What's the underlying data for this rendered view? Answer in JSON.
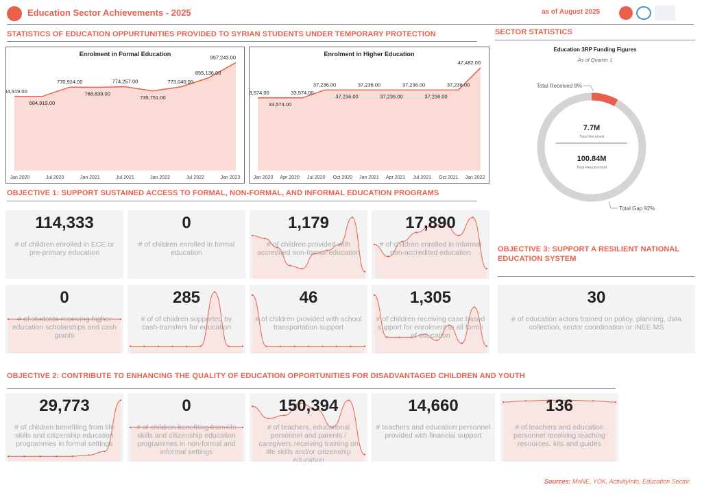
{
  "header": {
    "title": "Education Sector Achievements - 2025",
    "as_of": "as of August 2025"
  },
  "section_stats_title": "STATISTICS OF EDUCATION OPPURTUNITIES PROVIDED TO SYRIAN STUDENTS UNDER TEMPORARY PROTECTION",
  "sector_stats_title": "SECTOR STATISTICS",
  "colors": {
    "accent": "#e8604c",
    "area": "#fadbd6",
    "card_bg": "#f3f3f3",
    "donut_gray": "#d4d4d4"
  },
  "chart_data": [
    {
      "type": "area",
      "title": "Enrolment in Formal Education",
      "x_ticks": [
        "Jan 2020",
        "Jul 2020",
        "Jan 2021",
        "Jul 2021",
        "Jan 2022",
        "Jul 2022",
        "Jan 2023"
      ],
      "points": [
        {
          "label": "684,919.00",
          "value": 684919,
          "pos": "above"
        },
        {
          "label": "684,919.00",
          "value": 684919,
          "pos": "below"
        },
        {
          "label": "770,924.00",
          "value": 770924,
          "pos": "above"
        },
        {
          "label": "768,839.00",
          "value": 768839,
          "pos": "below"
        },
        {
          "label": "774,257.00",
          "value": 774257,
          "pos": "above"
        },
        {
          "label": "735,751.00",
          "value": 735751,
          "pos": "below"
        },
        {
          "label": "773,040.00",
          "value": 773040,
          "pos": "above"
        },
        {
          "label": "855,136.00",
          "value": 855136,
          "pos": "above"
        },
        {
          "label": "997,243.00",
          "value": 997243,
          "pos": "above"
        }
      ],
      "ylim": [
        0,
        1000000
      ]
    },
    {
      "type": "area",
      "title": "Enrolment in Higher Education",
      "x_ticks": [
        "Jan 2020",
        "Apr 2020",
        "Jul 2020",
        "Oct 2020",
        "Jan 2021",
        "Apr 2021",
        "Jul 2021",
        "Oct 2021",
        "Jan 2022"
      ],
      "points": [
        {
          "label": "33,574.00",
          "value": 33574,
          "pos": "above"
        },
        {
          "label": "33,574.00",
          "value": 33574,
          "pos": "below"
        },
        {
          "label": "33,574.00",
          "value": 33574,
          "pos": "above"
        },
        {
          "label": "37,236.00",
          "value": 37236,
          "pos": "above"
        },
        {
          "label": "37,236.00",
          "value": 37236,
          "pos": "below"
        },
        {
          "label": "37,236.00",
          "value": 37236,
          "pos": "above"
        },
        {
          "label": "37,236.00",
          "value": 37236,
          "pos": "below"
        },
        {
          "label": "37,236.00",
          "value": 37236,
          "pos": "above"
        },
        {
          "label": "37,236.00",
          "value": 37236,
          "pos": "below"
        },
        {
          "label": "37,236.00",
          "value": 37236,
          "pos": "above"
        },
        {
          "label": "47,482.00",
          "value": 47482,
          "pos": "above"
        }
      ],
      "ylim": [
        0,
        50000
      ]
    },
    {
      "type": "pie",
      "title": "Education 3RP Funding Figures",
      "subtitle": "As of Quarter 1",
      "slices": [
        {
          "name": "Total Received",
          "percent": 8,
          "label": "Total Received 8%"
        },
        {
          "name": "Total Gap",
          "percent": 92,
          "label": "Total Gap 92%"
        }
      ],
      "center": {
        "received_value": "7.7M",
        "received_label": "Total Received",
        "requirement_value": "100.84M",
        "requirement_label": "Total Requirement"
      }
    }
  ],
  "objectives": [
    {
      "title": "OBJECTIVE 1:   SUPPORT SUSTAINED ACCESS TO FORMAL, NON-FORMAL, AND INFORMAL EDUCATION PROGRAMS"
    },
    {
      "title": "OBJECTIVE 2: CONTRIBUTE TO ENHANCING THE QUALITY OF EDUCATION OPPORTUNITIES FOR DISADVANTAGED CHILDREN AND YOUTH"
    },
    {
      "title": "OBJECTIVE 3: SUPPORT A RESILIENT NATIONAL EDUCATION SYSTEM"
    }
  ],
  "cards": [
    {
      "value": "114,333",
      "desc": "# of children enrolled in ECE or pre-primary education",
      "trend": []
    },
    {
      "value": "0",
      "desc": "# of children enrolled in formal education",
      "trend": []
    },
    {
      "value": "1,179",
      "desc": "# of children provided with accredited non-formal education",
      "trend": [
        0.35,
        0.4,
        0.55,
        0.85,
        0.9,
        0.65,
        0.6,
        0.5,
        0.05,
        0.95
      ]
    },
    {
      "value": "17,890",
      "desc": "# of children enrolled in informal non-accredited education",
      "trend": [
        0.5,
        0.7,
        0.45,
        0.3,
        0.2,
        0.15,
        0.35,
        0.05,
        0.9
      ]
    },
    {
      "value": "0",
      "desc": "# of students receiving higher education scholarships and cash grants",
      "trend": [
        0.5,
        0.5,
        0.5,
        0.5,
        0.5,
        0.5,
        0.5,
        0.5
      ]
    },
    {
      "value": "285",
      "desc": "# of of children supported by cash-transfers for education",
      "trend": [
        0.95,
        0.95,
        0.95,
        0.95,
        0.95,
        0.95,
        0.05,
        0.95,
        0.95
      ]
    },
    {
      "value": "46",
      "desc": "# of children provided with school transportation support",
      "trend": [
        0.1,
        0.95,
        0.95,
        0.95,
        0.95,
        0.95,
        0.95,
        0.95,
        0.95
      ]
    },
    {
      "value": "1,305",
      "desc": "# of children receiving case based support for enrolment to all forms of education",
      "trend": [
        0.1,
        0.8,
        0.8,
        0.8,
        0.75,
        0.85,
        0.6,
        0.9,
        0.3,
        0.95
      ]
    },
    {
      "value": "30",
      "desc": "# of education actors trained on policy, planning, data collection, sector coordination or INEE MS",
      "trend": []
    },
    {
      "value": "29,773",
      "desc": "# of children benefiting from life skills and citizenship education programmes in formal settings",
      "trend": [
        0.98,
        0.98,
        0.98,
        0.98,
        0.98,
        0.96,
        0.9,
        0.05
      ]
    },
    {
      "value": "0",
      "desc": "# of children benefiting from life skills and citizenship education programmes in non-formal and informal settings",
      "trend": [
        0.5,
        0.5,
        0.5,
        0.5,
        0.5,
        0.5,
        0.5,
        0.5
      ]
    },
    {
      "value": "150,394",
      "desc": "# of teachers, educational personnel and parents / caregivers receiving training on life skills and/or citizenship education",
      "trend": [
        0.15,
        0.35,
        0.3,
        0.1,
        0.2,
        0.5,
        0.05,
        0.95
      ]
    },
    {
      "value": "14,660",
      "desc": "# teachers and education personnel provided with financial support",
      "trend": []
    },
    {
      "value": "136",
      "desc": "# of teachers and education personnel receiving teaching resources, kits and guides",
      "trend": [
        0.08,
        0.06,
        0.05,
        0.05,
        0.06,
        0.08
      ]
    }
  ],
  "sources": {
    "label": "Sources:",
    "text": " MoNE, YOK, ActivityInfo, Education Sector"
  }
}
